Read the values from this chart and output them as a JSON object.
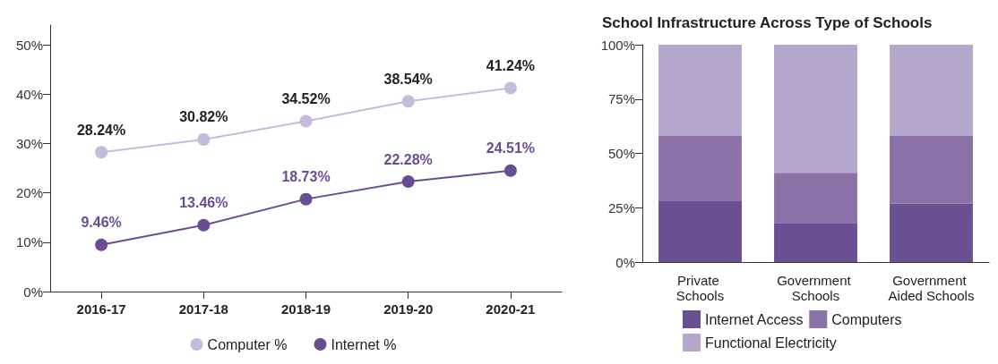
{
  "chart_data": [
    {
      "type": "line",
      "categories": [
        "2016-17",
        "2017-18",
        "2018-19",
        "2019-20",
        "2020-21"
      ],
      "series": [
        {
          "name": "Computer %",
          "color": "#c5bbdb",
          "values": [
            28.24,
            30.82,
            34.52,
            38.54,
            41.24
          ],
          "value_labels": [
            "28.24%",
            "30.82%",
            "34.52%",
            "38.54%",
            "41.24%"
          ]
        },
        {
          "name": "Internet %",
          "color": "#6a4c93",
          "values": [
            9.46,
            13.46,
            18.73,
            22.28,
            24.51
          ],
          "value_labels": [
            "9.46%",
            "13.46%",
            "18.73%",
            "22.28%",
            "24.51%"
          ]
        }
      ],
      "ylim": [
        0,
        54
      ],
      "yticks": [
        {
          "value": 0,
          "label": "0%"
        },
        {
          "value": 10,
          "label": "10%"
        },
        {
          "value": 20,
          "label": "20%"
        },
        {
          "value": 30,
          "label": "30%"
        },
        {
          "value": 40,
          "label": "40%"
        },
        {
          "value": 50,
          "label": "50%"
        }
      ],
      "marker": "circle",
      "grid": false,
      "legend": "bottom"
    },
    {
      "type": "bar",
      "title": "School Infrastructure Across Type of Schools",
      "categories": [
        "Private Schools",
        "Government Schools",
        "Government Aided Schools"
      ],
      "series": [
        {
          "name": "Internet Access",
          "color": "#6a4f93",
          "values": [
            28,
            18,
            27
          ]
        },
        {
          "name": "Computers",
          "color": "#8a72a8",
          "values": [
            30,
            23,
            31
          ]
        },
        {
          "name": "Functional Electricity",
          "color": "#b5a6cb",
          "values": [
            42,
            59,
            42
          ]
        }
      ],
      "stacked": true,
      "ylim": [
        0,
        100
      ],
      "yticks": [
        {
          "value": 0,
          "label": "0%"
        },
        {
          "value": 25,
          "label": "25%"
        },
        {
          "value": 50,
          "label": "50%"
        },
        {
          "value": 75,
          "label": "75%"
        },
        {
          "value": 100,
          "label": "100%"
        }
      ],
      "grid": false,
      "legend": "bottom"
    }
  ]
}
